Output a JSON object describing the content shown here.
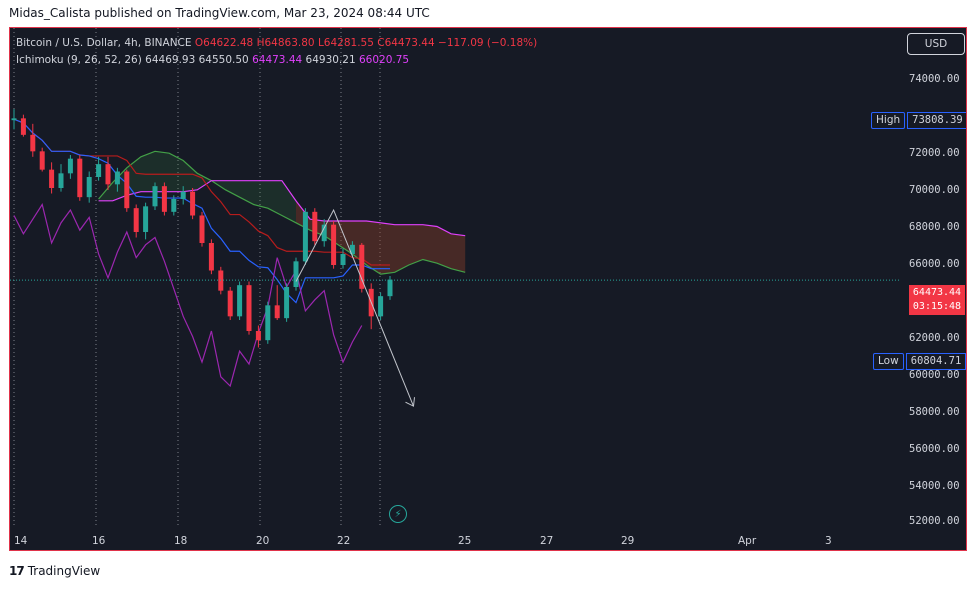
{
  "header": {
    "publish_line": "Midas_Calista published on TradingView.com, Mar 23, 2024 08:44 UTC"
  },
  "legend": {
    "symbol_line": "Bitcoin / U.S. Dollar, 4h, BINANCE",
    "open": "O64622.48",
    "high": "H64863.80",
    "low": "L64281.55",
    "close": "C64473.44",
    "change": "−117.09 (−0.18%)",
    "indicator_name": "Ichimoku (9, 26, 52, 26)",
    "indicator_values": [
      "64469.93",
      "64550.50",
      "64473.44",
      "64930.21",
      "66020.75"
    ]
  },
  "toolbar": {
    "currency": "USD"
  },
  "price_axis": {
    "ticks": [
      "74000.00",
      "72000.00",
      "70000.00",
      "68000.00",
      "66000.00",
      "62000.00",
      "60000.00",
      "58000.00",
      "56000.00",
      "54000.00",
      "52000.00"
    ],
    "high_label": "High",
    "high_value": "73808.39",
    "low_label": "Low",
    "low_value": "60804.71",
    "last_price": "64473.44",
    "countdown": "03:15:48"
  },
  "time_axis": {
    "labels": [
      "14",
      "16",
      "18",
      "20",
      "22",
      "25",
      "27",
      "29",
      "Apr",
      "3"
    ]
  },
  "footer": {
    "brand": "TradingView"
  },
  "colors": {
    "up": "#26a69a",
    "down": "#f23645",
    "tenkan": "#2962ff",
    "kijun": "#b71c1c",
    "chikou": "#9c27b0",
    "span_a": "#43a047",
    "span_b": "#e040fb",
    "background": "#161a25",
    "border": "#e0334a"
  },
  "chart_data": {
    "type": "candlestick",
    "title": "Bitcoin / U.S. Dollar, 4h, BINANCE",
    "interval": "4h",
    "y_range": [
      51500,
      75500
    ],
    "last_price": 64473.44,
    "high": 73808.39,
    "low": 60804.71,
    "candles": [
      [
        73200,
        73800,
        72700,
        73300
      ],
      [
        73300,
        73500,
        72300,
        72400
      ],
      [
        72400,
        73000,
        71200,
        71500
      ],
      [
        71500,
        71700,
        70400,
        70500
      ],
      [
        70500,
        70900,
        69200,
        69500
      ],
      [
        69500,
        70800,
        69300,
        70300
      ],
      [
        70300,
        71300,
        70000,
        71100
      ],
      [
        71100,
        71300,
        68800,
        69000
      ],
      [
        69000,
        70400,
        68700,
        70100
      ],
      [
        70100,
        71200,
        69900,
        70800
      ],
      [
        70800,
        71200,
        69400,
        69700
      ],
      [
        69700,
        70600,
        69300,
        70400
      ],
      [
        70400,
        70500,
        68200,
        68400
      ],
      [
        68400,
        68600,
        66800,
        67100
      ],
      [
        67100,
        68700,
        66700,
        68500
      ],
      [
        68500,
        69800,
        68300,
        69600
      ],
      [
        69600,
        69800,
        68000,
        68200
      ],
      [
        68200,
        69100,
        68000,
        68900
      ],
      [
        68900,
        69600,
        68600,
        69300
      ],
      [
        69300,
        69500,
        67800,
        68000
      ],
      [
        68000,
        68200,
        66300,
        66500
      ],
      [
        66500,
        66700,
        64800,
        65000
      ],
      [
        65000,
        65200,
        63700,
        63900
      ],
      [
        63900,
        64100,
        62300,
        62500
      ],
      [
        62500,
        64400,
        62300,
        64200
      ],
      [
        64200,
        64400,
        61500,
        61700
      ],
      [
        61700,
        62000,
        60800,
        61200
      ],
      [
        61200,
        63300,
        61000,
        63100
      ],
      [
        63100,
        64200,
        62300,
        62400
      ],
      [
        62400,
        64300,
        62200,
        64100
      ],
      [
        64100,
        65700,
        63900,
        65500
      ],
      [
        65500,
        68400,
        65300,
        68200
      ],
      [
        68200,
        68400,
        66400,
        66600
      ],
      [
        66600,
        67800,
        66300,
        67500
      ],
      [
        67500,
        67700,
        65100,
        65300
      ],
      [
        65300,
        66200,
        65100,
        65900
      ],
      [
        65900,
        66600,
        65700,
        66400
      ],
      [
        66400,
        66500,
        63800,
        64000
      ],
      [
        64000,
        64300,
        61800,
        62500
      ],
      [
        62500,
        63800,
        62300,
        63600
      ],
      [
        63600,
        64700,
        63400,
        64500
      ]
    ],
    "ichimoku": {
      "tenkan": 64469.93,
      "kijun": 64550.5,
      "chikou": 64473.44,
      "span_a": 64930.21,
      "span_b": 66020.75
    }
  }
}
